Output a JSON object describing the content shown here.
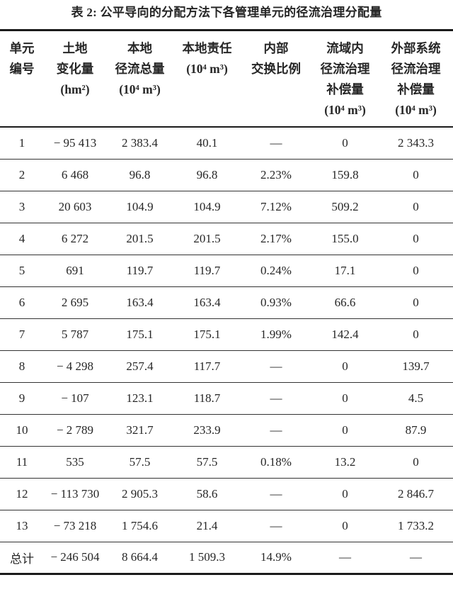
{
  "document": {
    "title": "表 2: 公平导向的分配方法下各管理单元的径流治理分配量"
  },
  "colors": {
    "text": "#262626",
    "rule": "#1b1b1b",
    "row_rule": "#333333",
    "background": "#ffffff"
  },
  "table": {
    "columns": [
      {
        "id": "unit-id",
        "label": "单元编号",
        "lines": [
          "单元",
          "编号"
        ]
      },
      {
        "id": "land-change",
        "label": "土地变化量 (hm²)",
        "lines": [
          "土地",
          "变化量",
          "(hm²)"
        ]
      },
      {
        "id": "local-runoff-total",
        "label": "本地径流总量 (10⁴ m³)",
        "lines": [
          "本地",
          "径流总量",
          "(10⁴ m³)"
        ]
      },
      {
        "id": "local-responsibility",
        "label": "本地责任 (10⁴ m³)",
        "lines": [
          "本地责任",
          "(10⁴ m³)"
        ]
      },
      {
        "id": "internal-exchange-ratio",
        "label": "内部交换比例",
        "lines": [
          "内部",
          "交换比例"
        ]
      },
      {
        "id": "in-basin-compensation",
        "label": "流域内径流治理补偿量 (10⁴ m³)",
        "lines": [
          "流域内",
          "径流治理",
          "补偿量",
          "(10⁴ m³)"
        ]
      },
      {
        "id": "external-compensation",
        "label": "外部系统径流治理补偿量 (10⁴ m³)",
        "lines": [
          "外部系统",
          "径流治理",
          "补偿量",
          "(10⁴ m³)"
        ]
      }
    ],
    "rows": [
      [
        "1",
        "− 95 413",
        "2 383.4",
        "40.1",
        "—",
        "0",
        "2 343.3"
      ],
      [
        "2",
        "6 468",
        "96.8",
        "96.8",
        "2.23%",
        "159.8",
        "0"
      ],
      [
        "3",
        "20 603",
        "104.9",
        "104.9",
        "7.12%",
        "509.2",
        "0"
      ],
      [
        "4",
        "6 272",
        "201.5",
        "201.5",
        "2.17%",
        "155.0",
        "0"
      ],
      [
        "5",
        "691",
        "119.7",
        "119.7",
        "0.24%",
        "17.1",
        "0"
      ],
      [
        "6",
        "2 695",
        "163.4",
        "163.4",
        "0.93%",
        "66.6",
        "0"
      ],
      [
        "7",
        "5 787",
        "175.1",
        "175.1",
        "1.99%",
        "142.4",
        "0"
      ],
      [
        "8",
        "− 4 298",
        "257.4",
        "117.7",
        "—",
        "0",
        "139.7"
      ],
      [
        "9",
        "− 107",
        "123.1",
        "118.7",
        "—",
        "0",
        "4.5"
      ],
      [
        "10",
        "− 2 789",
        "321.7",
        "233.9",
        "—",
        "0",
        "87.9"
      ],
      [
        "11",
        "535",
        "57.5",
        "57.5",
        "0.18%",
        "13.2",
        "0"
      ],
      [
        "12",
        "− 113 730",
        "2 905.3",
        "58.6",
        "—",
        "0",
        "2 846.7"
      ],
      [
        "13",
        "− 73 218",
        "1 754.6",
        "21.4",
        "—",
        "0",
        "1 733.2"
      ],
      [
        "总计",
        "− 246 504",
        "8 664.4",
        "1 509.3",
        "14.9%",
        "—",
        "—"
      ]
    ]
  }
}
